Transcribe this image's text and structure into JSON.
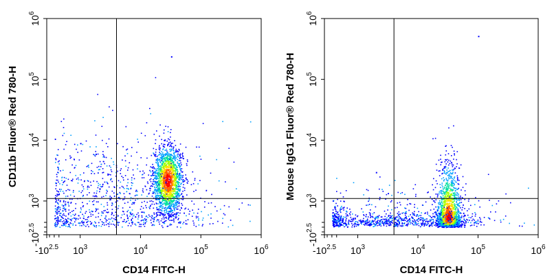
{
  "chart_data": [
    {
      "type": "scatter",
      "subtype": "flow-cytometry density dot plot",
      "xlabel": "CD14 FITC-H",
      "ylabel": "CD11b Fluor® Red 780-H",
      "x_ticks": [
        {
          "base": "-10",
          "exp": "2.5"
        },
        {
          "base": "10",
          "exp": "3"
        },
        {
          "base": "10",
          "exp": "4"
        },
        {
          "base": "10",
          "exp": "5"
        },
        {
          "base": "10",
          "exp": "6"
        }
      ],
      "y_ticks": [
        {
          "base": "-10",
          "exp": "2.5"
        },
        {
          "base": "10",
          "exp": "3"
        },
        {
          "base": "10",
          "exp": "4"
        },
        {
          "base": "10",
          "exp": "5"
        },
        {
          "base": "10",
          "exp": "6"
        }
      ],
      "x_scale": "biexponential",
      "y_scale": "biexponential",
      "xlim": [
        -316,
        1000000
      ],
      "ylim": [
        -316,
        1000000
      ],
      "quadrant_gate": {
        "x": 4000,
        "y": 1100
      },
      "populations": [
        {
          "name": "main",
          "x_center": 28000,
          "y_center": 2200,
          "x_spread_decades": 0.12,
          "y_spread_decades": 0.28,
          "count": 1800
        },
        {
          "name": "tail",
          "x_center": 3500,
          "y_center": 900,
          "x_spread_decades": 0.9,
          "y_spread_decades": 0.55,
          "count": 1000
        }
      ],
      "outliers": [
        {
          "x": 32000,
          "y": 240000
        },
        {
          "x": 1000,
          "y": 9000
        },
        {
          "x": 6000,
          "y": 400
        },
        {
          "x": 1800,
          "y": 6000
        }
      ],
      "density_colors": [
        "#0000ff",
        "#00a0ff",
        "#00e0a0",
        "#a0ff00",
        "#ffe000",
        "#ff6000",
        "#ff0000"
      ],
      "grid": false
    },
    {
      "type": "scatter",
      "subtype": "flow-cytometry density dot plot",
      "xlabel": "CD14 FITC-H",
      "ylabel": "Mouse IgG1 Fluor® Red 780-H",
      "x_ticks": [
        {
          "base": "-10",
          "exp": "2.5"
        },
        {
          "base": "10",
          "exp": "3"
        },
        {
          "base": "10",
          "exp": "4"
        },
        {
          "base": "10",
          "exp": "5"
        },
        {
          "base": "10",
          "exp": "6"
        }
      ],
      "y_ticks": [
        {
          "base": "-10",
          "exp": "2.5"
        },
        {
          "base": "10",
          "exp": "3"
        },
        {
          "base": "10",
          "exp": "4"
        },
        {
          "base": "10",
          "exp": "5"
        },
        {
          "base": "10",
          "exp": "6"
        }
      ],
      "x_scale": "biexponential",
      "y_scale": "biexponential",
      "xlim": [
        -316,
        1000000
      ],
      "ylim": [
        -316,
        1000000
      ],
      "quadrant_gate": {
        "x": 4000,
        "y": 1100
      },
      "populations": [
        {
          "name": "main",
          "x_center": 32000,
          "y_center": 400,
          "x_spread_decades": 0.1,
          "y_spread_decades": 0.5,
          "count": 1800
        },
        {
          "name": "tail",
          "x_center": 3000,
          "y_center": 300,
          "x_spread_decades": 0.9,
          "y_spread_decades": 0.35,
          "count": 900
        }
      ],
      "outliers": [
        {
          "x": 100000,
          "y": 520000
        },
        {
          "x": 2000,
          "y": 3000
        }
      ],
      "density_colors": [
        "#0000ff",
        "#00a0ff",
        "#00e0a0",
        "#a0ff00",
        "#ffe000",
        "#ff6000",
        "#ff0000"
      ],
      "grid": false
    }
  ]
}
